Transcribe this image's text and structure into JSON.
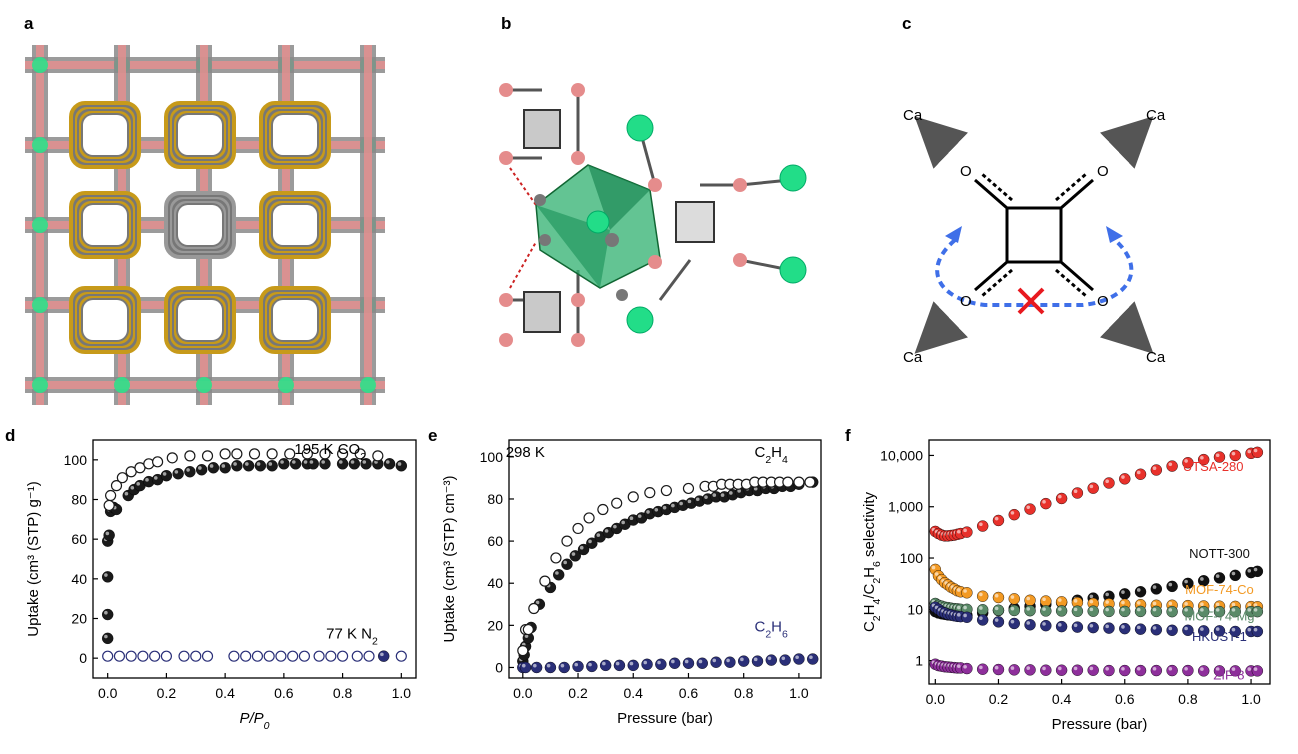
{
  "panel_labels": [
    "a",
    "b",
    "c",
    "d",
    "e",
    "f"
  ],
  "panel_c": {
    "ca_labels": [
      "Ca",
      "Ca",
      "Ca",
      "Ca"
    ],
    "o_labels": [
      "O",
      "O",
      "O",
      "O"
    ]
  },
  "chart_data": [
    {
      "panel": "d",
      "type": "scatter",
      "xlabel_pre": "P/P",
      "xlabel_sub": "0",
      "ylabel": "Uptake (cm³ (STP) g⁻¹)",
      "xlim": [
        -0.05,
        1.05
      ],
      "ylim": [
        -10,
        110
      ],
      "xticks": [
        0.0,
        0.2,
        0.4,
        0.6,
        0.8,
        1.0
      ],
      "xtick_labels": [
        "0.0",
        "0.2",
        "0.4",
        "0.6",
        "0.8",
        "1.0"
      ],
      "yticks": [
        0,
        20,
        40,
        60,
        80,
        100
      ],
      "ytick_labels": [
        "0",
        "20",
        "40",
        "60",
        "80",
        "100"
      ],
      "annotations": [
        {
          "pre": "195 K CO",
          "sub": "2",
          "post": "",
          "x": 0.88,
          "y": 103,
          "color": "#000000"
        },
        {
          "pre": "77 K N",
          "sub": "2",
          "post": "",
          "x": 0.92,
          "y": 10,
          "color": "#000000"
        }
      ],
      "series": [
        {
          "style": "filled",
          "color": "#1a1a1a",
          "x": [
            0.0,
            0.0,
            0.0,
            0.0,
            0.005,
            0.01,
            0.02,
            0.03,
            0.07,
            0.09,
            0.11,
            0.14,
            0.17,
            0.2,
            0.24,
            0.28,
            0.32,
            0.36,
            0.4,
            0.44,
            0.48,
            0.52,
            0.56,
            0.6,
            0.64,
            0.68,
            0.7,
            0.74,
            0.8,
            0.84,
            0.88,
            0.92,
            0.96,
            1.0
          ],
          "y": [
            10,
            22,
            41,
            59,
            62,
            74,
            76,
            75,
            82,
            85,
            87,
            89,
            90,
            92,
            93,
            94,
            95,
            96,
            96,
            97,
            97,
            97,
            97,
            98,
            98,
            98,
            98,
            98,
            98,
            98,
            98,
            98,
            98,
            97
          ]
        },
        {
          "style": "open",
          "color": "#1a1a1a",
          "x": [
            0.005,
            0.01,
            0.03,
            0.05,
            0.08,
            0.11,
            0.14,
            0.17,
            0.22,
            0.28,
            0.34,
            0.4,
            0.44,
            0.5,
            0.56,
            0.62,
            0.68,
            0.74,
            0.8,
            0.86,
            0.92
          ],
          "y": [
            77,
            82,
            87,
            91,
            94,
            96,
            98,
            99,
            101,
            102,
            102,
            103,
            103,
            103,
            103,
            103,
            103,
            103,
            103,
            103,
            102
          ]
        },
        {
          "style": "filled",
          "color": "#2a2f78",
          "x": [
            0.94
          ],
          "y": [
            1
          ]
        },
        {
          "style": "open",
          "color": "#2a2f78",
          "x": [
            0.0,
            0.04,
            0.08,
            0.12,
            0.16,
            0.2,
            0.26,
            0.3,
            0.34,
            0.43,
            0.47,
            0.51,
            0.55,
            0.59,
            0.63,
            0.67,
            0.72,
            0.76,
            0.8,
            0.85,
            0.89,
            1.0
          ],
          "y": [
            1,
            1,
            1,
            1,
            1,
            1,
            1,
            1,
            1,
            1,
            1,
            1,
            1,
            1,
            1,
            1,
            1,
            1,
            1,
            1,
            1,
            1
          ]
        }
      ]
    },
    {
      "panel": "e",
      "type": "scatter",
      "xlabel": "Pressure (bar)",
      "ylabel": "Uptake (cm³ (STP) cm⁻³)",
      "xlim": [
        -0.05,
        1.08
      ],
      "ylim": [
        -5,
        108
      ],
      "xticks": [
        0.0,
        0.2,
        0.4,
        0.6,
        0.8,
        1.0
      ],
      "xtick_labels": [
        "0.0",
        "0.2",
        "0.4",
        "0.6",
        "0.8",
        "1.0"
      ],
      "yticks": [
        0,
        20,
        40,
        60,
        80,
        100
      ],
      "ytick_labels": [
        "0",
        "20",
        "40",
        "60",
        "80",
        "100"
      ],
      "annotations": [
        {
          "pre": "298 K",
          "sub": "",
          "post": "",
          "x": 0.08,
          "y": 100,
          "color": "#000000"
        },
        {
          "pre": "C",
          "sub": "2",
          "post": "H",
          "sub2": "4",
          "x": 0.96,
          "y": 100,
          "color": "#000000"
        },
        {
          "pre": "C",
          "sub": "2",
          "post": "H",
          "sub2": "6",
          "x": 0.96,
          "y": 17,
          "color": "#2a2f78"
        }
      ],
      "series": [
        {
          "style": "filled",
          "color": "#1a1a1a",
          "x": [
            0.0,
            0.005,
            0.01,
            0.02,
            0.03,
            0.06,
            0.1,
            0.13,
            0.16,
            0.19,
            0.22,
            0.25,
            0.28,
            0.31,
            0.34,
            0.37,
            0.4,
            0.43,
            0.46,
            0.49,
            0.52,
            0.55,
            0.58,
            0.61,
            0.64,
            0.67,
            0.7,
            0.73,
            0.76,
            0.79,
            0.82,
            0.85,
            0.88,
            0.91,
            0.94,
            0.97,
            1.0,
            1.05
          ],
          "y": [
            3,
            6,
            10,
            14,
            19,
            30,
            38,
            44,
            49,
            53,
            56,
            59,
            62,
            64,
            66,
            68,
            70,
            71,
            73,
            74,
            75,
            76,
            77,
            78,
            79,
            80,
            81,
            81,
            82,
            83,
            84,
            84,
            85,
            85,
            86,
            86,
            87,
            88
          ]
        },
        {
          "style": "open",
          "color": "#1a1a1a",
          "x": [
            0.0,
            0.01,
            0.02,
            0.04,
            0.08,
            0.12,
            0.16,
            0.2,
            0.24,
            0.29,
            0.34,
            0.4,
            0.46,
            0.52,
            0.6,
            0.66,
            0.69,
            0.72,
            0.75,
            0.78,
            0.81,
            0.84,
            0.87,
            0.9,
            0.93,
            0.96,
            1.0,
            1.04
          ],
          "y": [
            8,
            18,
            18,
            28,
            41,
            52,
            60,
            66,
            71,
            75,
            78,
            81,
            83,
            84,
            85,
            86,
            86,
            87,
            87,
            87,
            87,
            88,
            88,
            88,
            88,
            88,
            88,
            88
          ]
        },
        {
          "style": "filled",
          "color": "#2a2f78",
          "x": [
            0.0,
            0.01,
            0.05,
            0.1,
            0.15,
            0.2,
            0.25,
            0.3,
            0.35,
            0.4,
            0.45,
            0.5,
            0.55,
            0.6,
            0.65,
            0.7,
            0.75,
            0.8,
            0.85,
            0.9,
            0.95,
            1.0,
            1.05
          ],
          "y": [
            0,
            0,
            0,
            0,
            0,
            0.5,
            0.5,
            1,
            1,
            1,
            1.5,
            1.5,
            2,
            2,
            2,
            2.5,
            2.5,
            3,
            3,
            3.5,
            3.5,
            4,
            4
          ]
        }
      ]
    },
    {
      "panel": "f",
      "type": "scatter",
      "xlabel": "Pressure (bar)",
      "ylabel_parts": [
        "C",
        "2",
        "H",
        "4",
        "/C",
        "2",
        "H",
        "6",
        " selectivity"
      ],
      "yscale": "log",
      "xlim": [
        -0.02,
        1.06
      ],
      "ylim": [
        0.35,
        20000
      ],
      "xticks": [
        0.0,
        0.2,
        0.4,
        0.6,
        0.8,
        1.0
      ],
      "xtick_labels": [
        "0.0",
        "0.2",
        "0.4",
        "0.6",
        "0.8",
        "1.0"
      ],
      "yticks": [
        1,
        10,
        100,
        1000,
        10000
      ],
      "ytick_labels": [
        "1",
        "10",
        "100",
        "1,000",
        "10,000"
      ],
      "series": [
        {
          "name": "UTSA-280",
          "label_x": 0.88,
          "label_y": 5000,
          "color": "#e8312b",
          "style": "filled",
          "x": [
            0.0,
            0.01,
            0.02,
            0.03,
            0.04,
            0.05,
            0.06,
            0.07,
            0.08,
            0.1,
            0.15,
            0.2,
            0.25,
            0.3,
            0.35,
            0.4,
            0.45,
            0.5,
            0.55,
            0.6,
            0.65,
            0.7,
            0.75,
            0.8,
            0.85,
            0.9,
            0.95,
            1.0,
            1.02
          ],
          "y": [
            330,
            300,
            280,
            270,
            270,
            275,
            280,
            290,
            300,
            320,
            420,
            540,
            700,
            900,
            1150,
            1450,
            1850,
            2300,
            2900,
            3500,
            4300,
            5200,
            6200,
            7200,
            8300,
            9300,
            10000,
            11000,
            11500
          ]
        },
        {
          "name": "NOTT-300",
          "label_x": 0.9,
          "label_y": 100,
          "color": "#111111",
          "style": "filled",
          "x": [
            0.0,
            0.01,
            0.02,
            0.03,
            0.04,
            0.05,
            0.06,
            0.07,
            0.08,
            0.1,
            0.15,
            0.2,
            0.25,
            0.3,
            0.35,
            0.4,
            0.45,
            0.5,
            0.55,
            0.6,
            0.65,
            0.7,
            0.75,
            0.8,
            0.85,
            0.9,
            0.95,
            1.0,
            1.02
          ],
          "y": [
            9,
            8.5,
            8.2,
            8,
            7.8,
            7.7,
            7.7,
            7.6,
            7.6,
            7.6,
            8.5,
            9.5,
            10.5,
            11.5,
            12.5,
            13.5,
            15,
            16.5,
            18,
            20,
            22,
            25,
            28,
            32,
            36,
            41,
            46,
            52,
            55
          ]
        },
        {
          "name": "MOF-74-Co",
          "label_x": 0.9,
          "label_y": 20,
          "color": "#f39a24",
          "style": "filled",
          "x": [
            0.0,
            0.01,
            0.02,
            0.03,
            0.04,
            0.05,
            0.06,
            0.07,
            0.08,
            0.1,
            0.15,
            0.2,
            0.25,
            0.3,
            0.35,
            0.4,
            0.45,
            0.5,
            0.55,
            0.6,
            0.65,
            0.7,
            0.75,
            0.8,
            0.85,
            0.9,
            0.95,
            1.0,
            1.02
          ],
          "y": [
            60,
            45,
            38,
            33,
            30,
            27,
            25,
            23,
            22,
            21,
            18,
            17,
            16,
            15,
            14.5,
            14,
            13.5,
            13,
            12.8,
            12.5,
            12.3,
            12,
            12,
            11.8,
            11.6,
            11.5,
            11.4,
            11.3,
            11.2
          ]
        },
        {
          "name": "MOF-74-Mg",
          "label_x": 0.9,
          "label_y": 6,
          "color": "#5a8a68",
          "style": "filled",
          "x": [
            0.0,
            0.01,
            0.02,
            0.03,
            0.04,
            0.05,
            0.06,
            0.07,
            0.08,
            0.1,
            0.15,
            0.2,
            0.25,
            0.3,
            0.35,
            0.4,
            0.45,
            0.5,
            0.55,
            0.6,
            0.65,
            0.7,
            0.75,
            0.8,
            0.85,
            0.9,
            0.95,
            1.0,
            1.02
          ],
          "y": [
            13,
            12,
            11.5,
            11,
            10.8,
            10.5,
            10.3,
            10.2,
            10,
            10,
            9.8,
            9.6,
            9.5,
            9.4,
            9.3,
            9.3,
            9.2,
            9.2,
            9.1,
            9.1,
            9.1,
            9.1,
            9,
            9,
            9,
            9,
            9,
            9,
            9
          ]
        },
        {
          "name": "HKUST-1",
          "label_x": 0.9,
          "label_y": 2.4,
          "color": "#2a2f78",
          "style": "filled",
          "x": [
            0.0,
            0.01,
            0.02,
            0.03,
            0.04,
            0.05,
            0.06,
            0.07,
            0.08,
            0.1,
            0.15,
            0.2,
            0.25,
            0.3,
            0.35,
            0.4,
            0.45,
            0.5,
            0.55,
            0.6,
            0.65,
            0.7,
            0.75,
            0.8,
            0.85,
            0.9,
            0.95,
            1.0,
            1.02
          ],
          "y": [
            11,
            10,
            9,
            8.5,
            8,
            7.8,
            7.5,
            7.3,
            7.2,
            7,
            6.2,
            5.7,
            5.3,
            5,
            4.8,
            4.6,
            4.5,
            4.4,
            4.3,
            4.2,
            4.1,
            4.0,
            3.9,
            3.9,
            3.8,
            3.8,
            3.7,
            3.7,
            3.7
          ]
        },
        {
          "name": "ZIF-8",
          "label_x": 0.93,
          "label_y": 0.43,
          "color": "#8e2f9b",
          "style": "filled",
          "x": [
            0.0,
            0.01,
            0.02,
            0.03,
            0.04,
            0.05,
            0.06,
            0.07,
            0.08,
            0.1,
            0.15,
            0.2,
            0.25,
            0.3,
            0.35,
            0.4,
            0.45,
            0.5,
            0.55,
            0.6,
            0.65,
            0.7,
            0.75,
            0.8,
            0.85,
            0.9,
            0.95,
            1.0,
            1.02
          ],
          "y": [
            0.85,
            0.8,
            0.78,
            0.76,
            0.75,
            0.74,
            0.73,
            0.72,
            0.72,
            0.7,
            0.68,
            0.67,
            0.66,
            0.66,
            0.65,
            0.65,
            0.65,
            0.65,
            0.64,
            0.64,
            0.64,
            0.64,
            0.64,
            0.64,
            0.63,
            0.63,
            0.63,
            0.63,
            0.63
          ]
        }
      ]
    }
  ]
}
